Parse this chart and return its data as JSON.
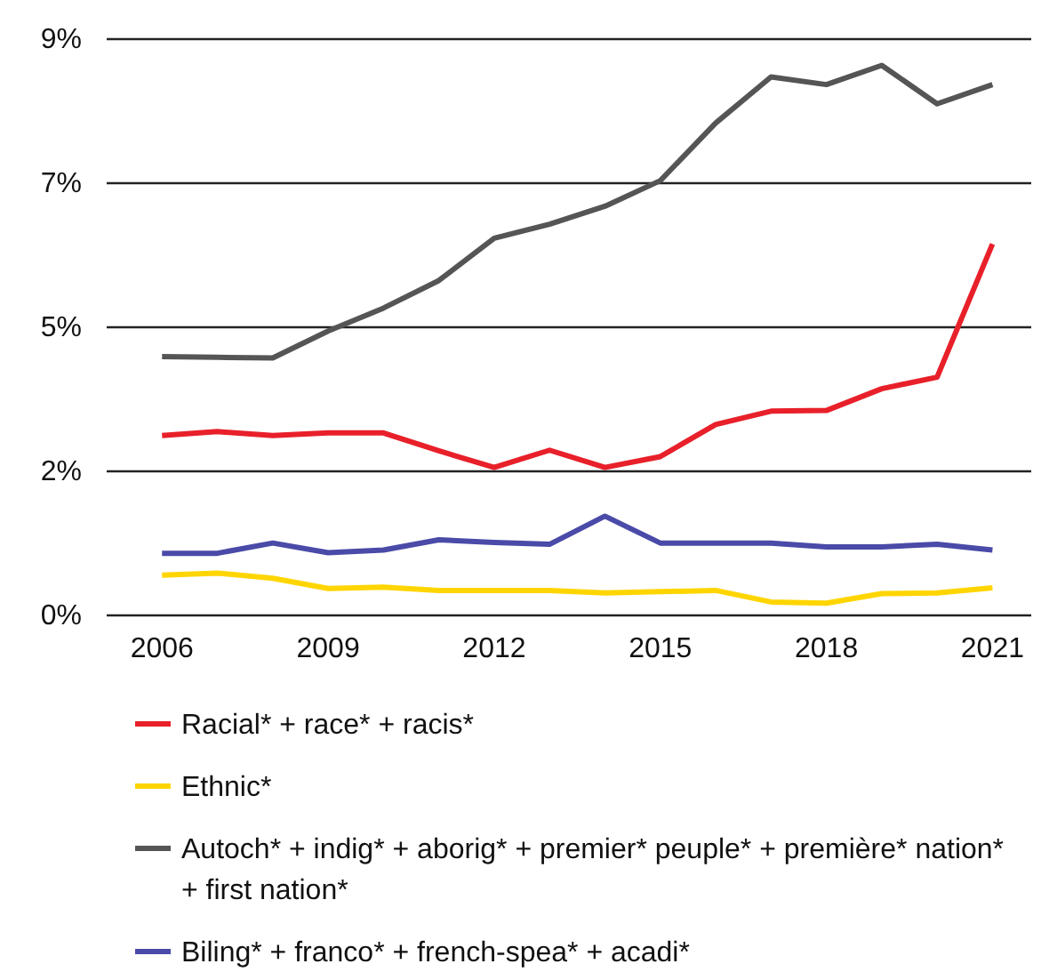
{
  "chart_data": {
    "type": "line",
    "x": [
      2006,
      2007,
      2008,
      2009,
      2010,
      2011,
      2012,
      2013,
      2014,
      2015,
      2016,
      2017,
      2018,
      2019,
      2020,
      2021
    ],
    "xlim": [
      2005,
      2021.7
    ],
    "xticks": [
      2006,
      2009,
      2012,
      2015,
      2018,
      2021
    ],
    "ylim": [
      0,
      9
    ],
    "yticks": [
      {
        "value": 0,
        "label": "0%"
      },
      {
        "value": 2.25,
        "label": "2%"
      },
      {
        "value": 4.5,
        "label": "5%"
      },
      {
        "value": 6.75,
        "label": "7%"
      },
      {
        "value": 9,
        "label": "9%"
      }
    ],
    "grid": "y",
    "legend": "bottom",
    "marker": "none",
    "line_style": "solid",
    "series": [
      {
        "name": "Racial* + race* + racis*",
        "color": "#e8202a",
        "values": [
          2.81,
          2.87,
          2.81,
          2.85,
          2.85,
          2.57,
          2.31,
          2.58,
          2.31,
          2.48,
          2.98,
          3.19,
          3.2,
          3.54,
          3.72,
          5.8
        ]
      },
      {
        "name": "Ethnic*",
        "color": "#ffd500",
        "values": [
          0.63,
          0.66,
          0.58,
          0.42,
          0.44,
          0.39,
          0.39,
          0.39,
          0.35,
          0.37,
          0.39,
          0.21,
          0.19,
          0.34,
          0.35,
          0.43
        ]
      },
      {
        "name": "Autoch* + indig* + aborig* + premier* peuple* + première* nation* + first nation*",
        "color": "#555555",
        "values": [
          4.04,
          4.03,
          4.02,
          4.44,
          4.8,
          5.23,
          5.89,
          6.11,
          6.39,
          6.79,
          7.69,
          8.41,
          8.29,
          8.59,
          7.99,
          8.29
        ]
      },
      {
        "name": "Biling* + franco* + french-spea* + acadi*",
        "color": "#4a4aa8",
        "values": [
          0.97,
          0.97,
          1.13,
          0.98,
          1.02,
          1.18,
          1.14,
          1.11,
          1.55,
          1.13,
          1.13,
          1.13,
          1.07,
          1.07,
          1.11,
          1.02
        ]
      }
    ]
  }
}
